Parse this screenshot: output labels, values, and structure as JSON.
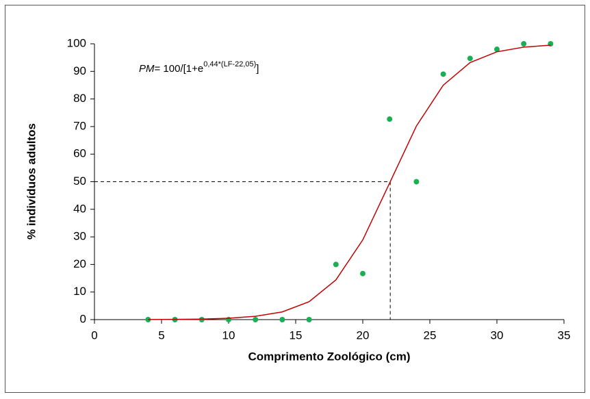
{
  "chart_data": {
    "type": "scatter",
    "x_label": "Comprimento Zoológico (cm)",
    "y_label": "% indivíduos adultos",
    "annotation": {
      "italic": "PM",
      "text": "= 100/[1+e",
      "superscript": "0,44*(LF-22,05)",
      "end": "]"
    },
    "x": [
      4,
      6,
      8,
      10,
      12,
      14,
      16,
      18,
      20,
      22,
      24,
      26,
      28,
      30,
      32,
      34
    ],
    "series": [
      {
        "mode": "markers",
        "color": "#1aaf54",
        "values": [
          0,
          0,
          0,
          0,
          0,
          0,
          0,
          20,
          16.7,
          72.7,
          50,
          89,
          94.7,
          98,
          100,
          100
        ]
      },
      {
        "mode": "lines",
        "color": "#c00000",
        "values": [
          0.04,
          0.09,
          0.2,
          0.5,
          1.2,
          2.8,
          6.5,
          14.4,
          28.9,
          49.5,
          70.2,
          85.0,
          93.2,
          97.1,
          98.8,
          99.5
        ]
      }
    ],
    "reference": {
      "x": 22.05,
      "y": 50
    },
    "xlim": [
      0,
      35
    ],
    "xticks": [
      0,
      5,
      10,
      15,
      20,
      25,
      30,
      35
    ],
    "ylim": [
      0,
      100
    ],
    "yticks": [
      0,
      10,
      20,
      30,
      40,
      50,
      60,
      70,
      80,
      90,
      100
    ],
    "grid": false
  }
}
